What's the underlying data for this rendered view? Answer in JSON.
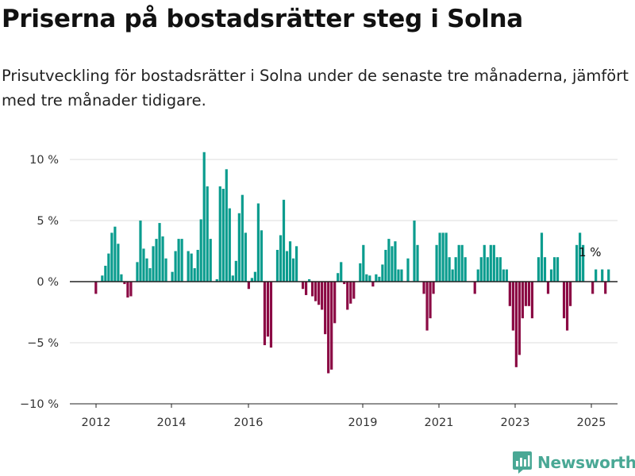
{
  "title": "Priserna på bostadsrätter steg i Solna",
  "subtitle": "Prisutveckling för bostadsrätter i Solna under de senaste tre månaderna, jämfört med tre månader tidigare.",
  "brand": {
    "name": "Newsworthy",
    "icon": "newsworthy-logo-icon"
  },
  "colors": {
    "positive": "#0a9c8e",
    "negative": "#8b0a44",
    "grid": "#dcdcdc",
    "baseline": "#222222"
  },
  "chart_data": {
    "type": "bar",
    "x_start": "2011-11",
    "x_step": "month",
    "values": [
      -1,
      0,
      0.5,
      1.3,
      2.3,
      4,
      4.5,
      3.1,
      0.6,
      -0.2,
      -1.3,
      -1.2,
      0,
      1.6,
      5,
      2.7,
      1.9,
      1.1,
      2.9,
      3.5,
      4.8,
      3.7,
      1.9,
      0,
      0.8,
      2.5,
      3.5,
      3.5,
      0,
      2.5,
      2.3,
      1.1,
      2.6,
      5.1,
      10.6,
      7.8,
      3.5,
      0,
      0.2,
      7.8,
      7.6,
      9.2,
      6,
      0.5,
      1.7,
      5.6,
      7.1,
      4,
      -0.6,
      0.3,
      0.8,
      6.4,
      4.2,
      -5.2,
      -4.5,
      -5.4,
      0,
      2.6,
      3.8,
      6.7,
      2.5,
      3.3,
      1.9,
      2.9,
      0,
      -0.6,
      -1.1,
      0.2,
      -1.2,
      -1.6,
      -1.9,
      -2.3,
      -4.3,
      -7.5,
      -7.2,
      -3.4,
      0.7,
      1.6,
      -0.2,
      -2.3,
      -1.8,
      -1.4,
      0,
      1.5,
      3,
      0.6,
      0.5,
      -0.4,
      0.6,
      0.4,
      1.4,
      2.6,
      3.5,
      2.9,
      3.3,
      1,
      1,
      0,
      1.9,
      0,
      5,
      3,
      0,
      -1,
      -4,
      -3,
      -1,
      3,
      4,
      4,
      4,
      2,
      1,
      2,
      3,
      3,
      2,
      0,
      0,
      -1,
      1,
      2,
      3,
      2,
      3,
      3,
      2,
      2,
      1,
      1,
      -2,
      -4,
      -7,
      -6,
      -3,
      -2,
      -2,
      -3,
      0,
      2,
      4,
      2,
      -1,
      1,
      2,
      2,
      0,
      -3,
      -4,
      -2,
      0,
      3,
      4,
      3,
      0,
      0,
      -1,
      1,
      0,
      1,
      -1,
      1
    ],
    "x_ticks": [
      "2012",
      "2014",
      "2016",
      "2019",
      "2021",
      "2023",
      "2025"
    ],
    "y_ticks": [
      "10 %",
      "5 %",
      "0 %",
      "−5 %",
      "−10 %"
    ],
    "ylim": [
      -10,
      11
    ],
    "grid": true,
    "annotation": {
      "text": "1 %",
      "value": 1
    }
  }
}
